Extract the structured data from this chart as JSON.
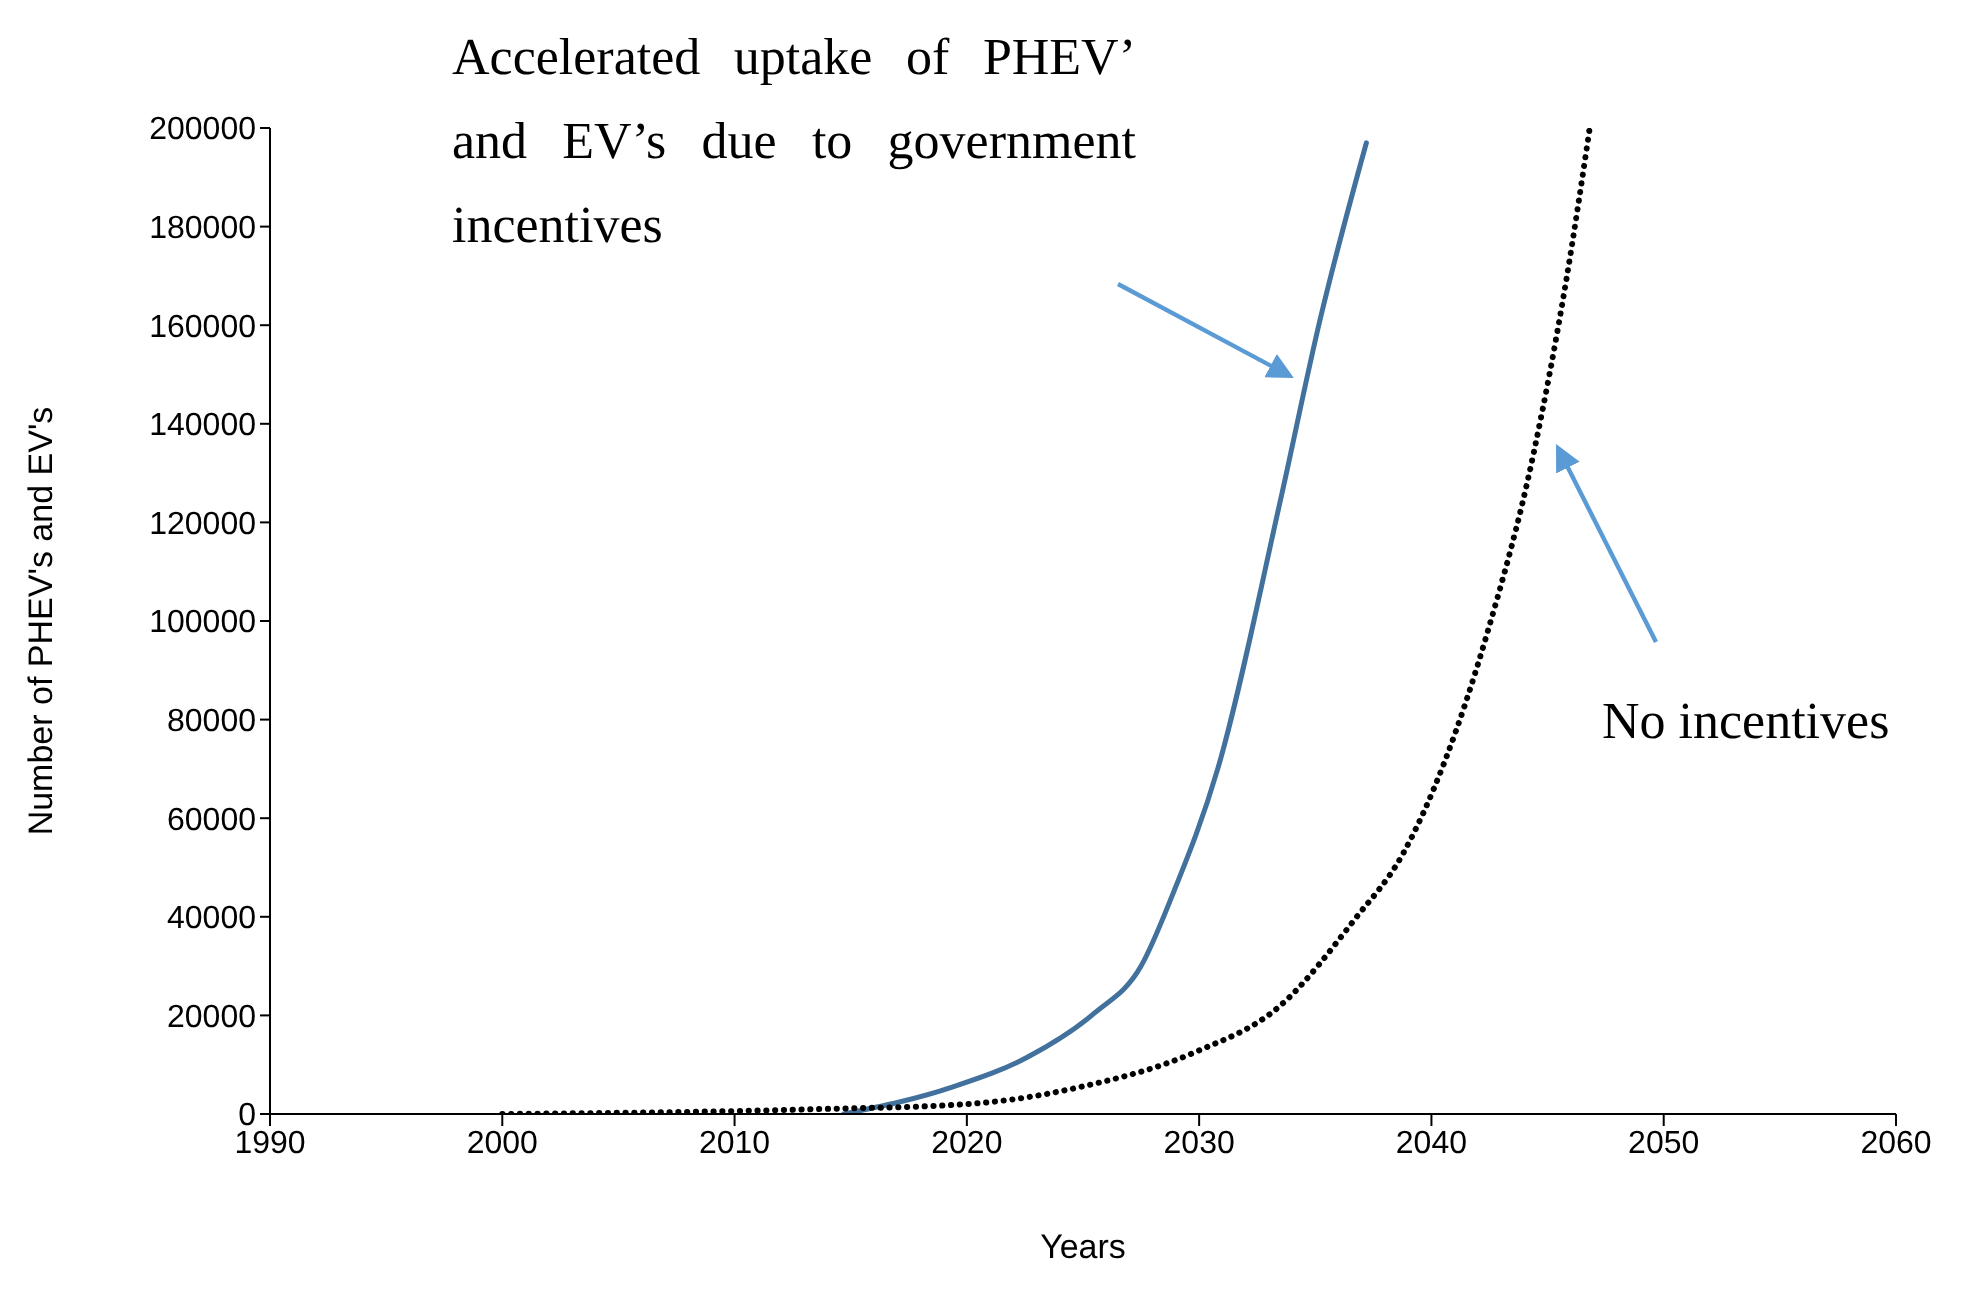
{
  "chart_data": {
    "type": "line",
    "xlabel": "Years",
    "ylabel": "Number of PHEV's and EV's",
    "xlim": [
      1990,
      2060
    ],
    "xticks": [
      1990,
      2000,
      2010,
      2020,
      2030,
      2040,
      2050,
      2060
    ],
    "ylim": [
      0,
      200000
    ],
    "yticks": [
      0,
      20000,
      40000,
      60000,
      80000,
      100000,
      120000,
      140000,
      160000,
      180000,
      200000
    ],
    "grid": false,
    "legend": false,
    "marker": "none",
    "annotations": [
      "Accelerated uptake of PHEV’ and EV’s due to government incentives",
      "No incentives"
    ],
    "series": [
      {
        "color": "#41719c",
        "line_style": "solid",
        "x": [
          2014.7,
          2019.4,
          2022.6,
          2025.5,
          2027.5,
          2028.9,
          2030.8,
          2033.5,
          2035.2,
          2037.2
        ],
        "values": [
          0,
          5500,
          11500,
          20500,
          30000,
          45000,
          70000,
          124500,
          161000,
          197000
        ]
      },
      {
        "color": "#000000",
        "line_style": "dotted",
        "x": [
          2000,
          2013.7,
          2020,
          2024.9,
          2029.8,
          2033.5,
          2036.7,
          2038.8,
          2042.4,
          2044.4,
          2045.8,
          2046.8
        ],
        "values": [
          0,
          1000,
          2000,
          5500,
          12500,
          22000,
          39500,
          53000,
          97500,
          134000,
          169000,
          199500
        ]
      }
    ]
  }
}
